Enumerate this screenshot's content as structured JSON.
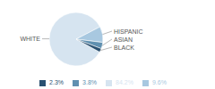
{
  "chart_data": {
    "type": "pie",
    "categories": [
      "WHITE",
      "HISPANIC",
      "ASIAN",
      "BLACK"
    ],
    "values": [
      84.2,
      9.6,
      3.8,
      2.3
    ],
    "value_labels": [
      "84.2%",
      "9.6%",
      "3.8%",
      "2.3%"
    ],
    "colors": [
      "#d6e4f0",
      "#a8c8e0",
      "#6090b0",
      "#2a5070"
    ],
    "legend": "bottom"
  }
}
